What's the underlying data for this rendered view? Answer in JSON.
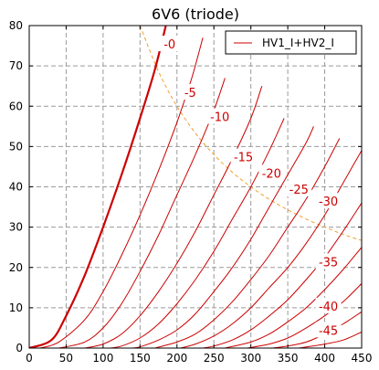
{
  "chart_data": {
    "type": "line",
    "title": "6V6  (triode)",
    "xlabel": "",
    "ylabel": "",
    "xlim": [
      0,
      450
    ],
    "ylim": [
      0,
      80
    ],
    "x_ticks": [
      0,
      50,
      100,
      150,
      200,
      250,
      300,
      350,
      400,
      450
    ],
    "y_ticks": [
      0,
      10,
      20,
      30,
      40,
      50,
      60,
      70,
      80
    ],
    "grid": true,
    "legend": {
      "position": "top-right",
      "entries": [
        "HV1_I+HV2_I"
      ]
    },
    "series_color": "#cc0000",
    "dissipation_color": "#f0a030",
    "series": [
      {
        "label": "-0",
        "label_at": [
          190,
          75
        ],
        "points": [
          [
            0,
            0
          ],
          [
            30,
            2
          ],
          [
            50,
            8
          ],
          [
            75,
            18
          ],
          [
            100,
            30
          ],
          [
            125,
            43
          ],
          [
            150,
            57
          ],
          [
            170,
            69
          ],
          [
            185,
            80
          ]
        ]
      },
      {
        "label": "-5",
        "label_at": [
          218,
          63
        ],
        "points": [
          [
            15,
            0
          ],
          [
            40,
            1.5
          ],
          [
            75,
            7
          ],
          [
            100,
            14
          ],
          [
            125,
            23
          ],
          [
            150,
            33
          ],
          [
            175,
            44
          ],
          [
            200,
            56
          ],
          [
            220,
            67
          ],
          [
            235,
            77
          ]
        ]
      },
      {
        "label": "-10",
        "label_at": [
          258,
          57
        ],
        "points": [
          [
            40,
            0
          ],
          [
            75,
            1.5
          ],
          [
            100,
            5
          ],
          [
            125,
            11
          ],
          [
            150,
            19
          ],
          [
            175,
            28
          ],
          [
            200,
            38
          ],
          [
            225,
            48
          ],
          [
            250,
            59
          ],
          [
            265,
            67
          ]
        ]
      },
      {
        "label": "-15",
        "label_at": [
          290,
          47
        ],
        "points": [
          [
            75,
            0
          ],
          [
            100,
            1
          ],
          [
            125,
            3.5
          ],
          [
            150,
            8
          ],
          [
            175,
            14
          ],
          [
            200,
            21
          ],
          [
            225,
            29
          ],
          [
            250,
            38
          ],
          [
            275,
            47
          ],
          [
            300,
            57
          ],
          [
            315,
            65
          ]
        ]
      },
      {
        "label": "-20",
        "label_at": [
          328,
          43
        ],
        "points": [
          [
            110,
            0
          ],
          [
            125,
            0.5
          ],
          [
            150,
            2.5
          ],
          [
            175,
            6
          ],
          [
            200,
            11
          ],
          [
            225,
            17
          ],
          [
            250,
            24
          ],
          [
            275,
            32
          ],
          [
            300,
            40
          ],
          [
            325,
            49
          ],
          [
            345,
            57
          ]
        ]
      },
      {
        "label": "-25",
        "label_at": [
          365,
          39
        ],
        "points": [
          [
            140,
            0
          ],
          [
            150,
            0.3
          ],
          [
            175,
            2
          ],
          [
            200,
            4.5
          ],
          [
            225,
            8.5
          ],
          [
            250,
            14
          ],
          [
            275,
            20
          ],
          [
            300,
            27
          ],
          [
            325,
            35
          ],
          [
            350,
            43
          ],
          [
            375,
            51
          ],
          [
            385,
            55
          ]
        ]
      },
      {
        "label": "-30",
        "label_at": [
          405,
          36
        ],
        "points": [
          [
            170,
            0
          ],
          [
            200,
            1.5
          ],
          [
            225,
            3.5
          ],
          [
            250,
            7
          ],
          [
            275,
            11.5
          ],
          [
            300,
            17
          ],
          [
            325,
            23
          ],
          [
            350,
            30
          ],
          [
            375,
            37
          ],
          [
            400,
            45
          ],
          [
            420,
            52
          ]
        ]
      },
      {
        "label": "",
        "label_at": null,
        "points": [
          [
            205,
            0
          ],
          [
            225,
            1
          ],
          [
            250,
            3
          ],
          [
            275,
            6
          ],
          [
            300,
            10
          ],
          [
            325,
            15
          ],
          [
            350,
            20
          ],
          [
            375,
            26
          ],
          [
            400,
            33
          ],
          [
            425,
            41
          ],
          [
            450,
            49
          ]
        ]
      },
      {
        "label": "-35",
        "label_at": [
          405,
          21
        ],
        "points": [
          [
            235,
            0
          ],
          [
            250,
            0.5
          ],
          [
            275,
            2
          ],
          [
            300,
            4.5
          ],
          [
            325,
            8
          ],
          [
            350,
            12
          ],
          [
            375,
            17
          ],
          [
            400,
            22.5
          ],
          [
            425,
            29
          ],
          [
            450,
            36
          ]
        ]
      },
      {
        "label": "",
        "label_at": null,
        "points": [
          [
            265,
            0
          ],
          [
            300,
            1.5
          ],
          [
            325,
            3.5
          ],
          [
            350,
            6.5
          ],
          [
            375,
            10
          ],
          [
            400,
            14.5
          ],
          [
            425,
            19.5
          ],
          [
            450,
            25
          ]
        ]
      },
      {
        "label": "-40",
        "label_at": [
          405,
          10
        ],
        "points": [
          [
            295,
            0
          ],
          [
            325,
            1
          ],
          [
            350,
            2.5
          ],
          [
            375,
            5
          ],
          [
            400,
            8
          ],
          [
            425,
            11.5
          ],
          [
            450,
            16
          ]
        ]
      },
      {
        "label": "",
        "label_at": null,
        "points": [
          [
            330,
            0
          ],
          [
            350,
            0.5
          ],
          [
            375,
            1.5
          ],
          [
            400,
            3.5
          ],
          [
            425,
            6
          ],
          [
            450,
            9
          ]
        ]
      },
      {
        "label": "-45",
        "label_at": [
          405,
          4
        ],
        "points": [
          [
            365,
            0
          ],
          [
            400,
            1
          ],
          [
            425,
            2
          ],
          [
            450,
            4
          ]
        ]
      }
    ],
    "dissipation_curve": [
      [
        150,
        80
      ],
      [
        175,
        68.6
      ],
      [
        200,
        60
      ],
      [
        225,
        53.3
      ],
      [
        250,
        48
      ],
      [
        275,
        43.6
      ],
      [
        300,
        40
      ],
      [
        325,
        36.9
      ],
      [
        350,
        34.3
      ],
      [
        375,
        32
      ],
      [
        400,
        30
      ],
      [
        425,
        28.2
      ],
      [
        450,
        26.7
      ]
    ]
  }
}
